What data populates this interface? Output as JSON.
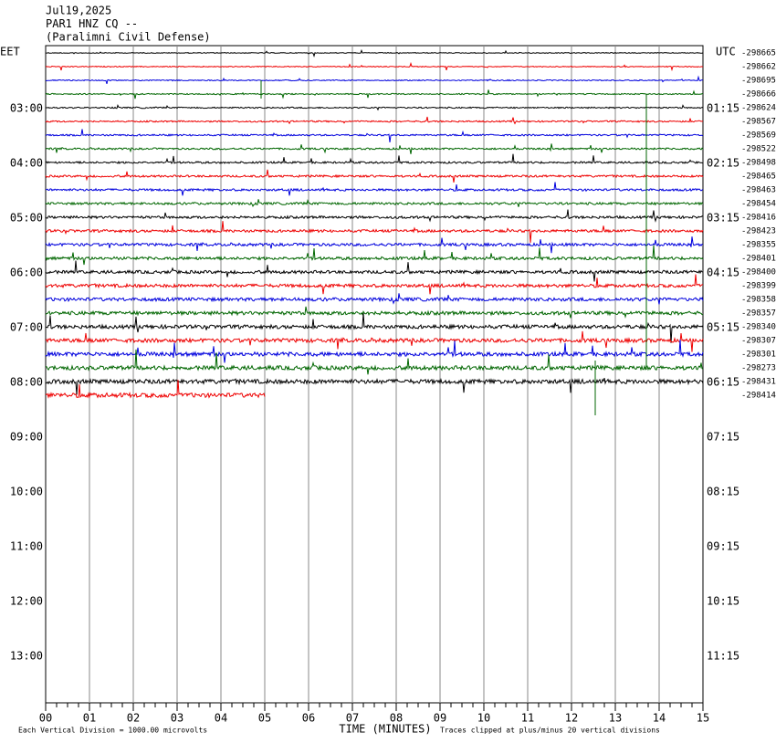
{
  "header": {
    "lines": [
      "Jul19,2025",
      "PAR1 HNZ CQ --",
      "(Paralimni Civil Defense)"
    ]
  },
  "left_axis": {
    "title": "EET",
    "labels": [
      "03:00",
      "04:00",
      "05:00",
      "06:00",
      "07:00",
      "08:00",
      "09:00",
      "10:00",
      "11:00",
      "12:00",
      "13:00"
    ]
  },
  "right_axis": {
    "title": "UTC",
    "labels": [
      "01:15",
      "02:15",
      "03:15",
      "04:15",
      "05:15",
      "06:15",
      "07:15",
      "08:15",
      "09:15",
      "10:15",
      "11:15"
    ]
  },
  "trace_labels": [
    "-298665",
    "-298662",
    "-298695",
    "-298666",
    "-298624",
    "-298567",
    "-298569",
    "-298522",
    "-298498",
    "-298465",
    "-298463",
    "-298454",
    "-298416",
    "-298423",
    "-298355",
    "-298401",
    "-298400",
    "-298399",
    "-298358",
    "-298357",
    "-298340",
    "-298307",
    "-298301",
    "-298273",
    "-298431",
    "-298414"
  ],
  "x_axis": {
    "title": "TIME (MINUTES)",
    "labels": [
      "00",
      "01",
      "02",
      "03",
      "04",
      "05",
      "06",
      "07",
      "08",
      "09",
      "10",
      "11",
      "12",
      "13",
      "14",
      "15"
    ]
  },
  "footer": {
    "scale_note": "Each Vertical Division = 1000.00 microvolts",
    "clip_note": "Traces clipped at plus/minus 20 vertical divisions"
  }
}
